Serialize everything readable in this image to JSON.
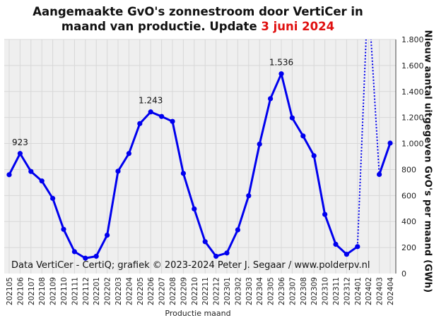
{
  "chart_data": {
    "type": "line",
    "title_line1": "Aangemaakte GvO's zonnestroom door VertiCer in",
    "title_line2_prefix": "maand van productie. Update",
    "title_line2_date": "3 juni 2024",
    "ylabel": "Nieuw aantal uitgegeven GvO's per maand (GWh)",
    "xlabel": "Productie maand",
    "credit": "Data VertiCer - CertiQ; grafiek © 2023-2024 Peter J. Segaar / www.polderpv.nl",
    "ylim": [
      0,
      1800
    ],
    "yticks": [
      0,
      200,
      400,
      600,
      800,
      1000,
      1200,
      1400,
      1600,
      1800
    ],
    "ytick_labels": [
      "0",
      "200",
      "400",
      "600",
      "800",
      "1.000",
      "1.200",
      "1.400",
      "1.600",
      "1.800"
    ],
    "grid": true,
    "categories": [
      "202105",
      "202106",
      "202107",
      "202108",
      "202109",
      "202110",
      "202111",
      "202112",
      "202201",
      "202202",
      "202203",
      "202204",
      "202205",
      "202206",
      "202207",
      "202208",
      "202209",
      "202210",
      "202211",
      "202212",
      "202301",
      "202302",
      "202303",
      "202304",
      "202305",
      "202306",
      "202307",
      "202308",
      "202309",
      "202310",
      "202311",
      "202312",
      "202401",
      "202402",
      "202403",
      "202404"
    ],
    "series": [
      {
        "values": [
          760,
          923,
          785,
          712,
          578,
          340,
          168,
          118,
          133,
          295,
          787,
          923,
          1153,
          1243,
          1208,
          1170,
          770,
          497,
          245,
          133,
          158,
          336,
          598,
          995,
          1345,
          1536,
          1197,
          1058,
          906,
          455,
          225,
          148,
          207,
          null,
          762,
          1003
        ],
        "color": "#0000ee"
      }
    ],
    "gap_bridge": {
      "from": "202401",
      "to": "202403",
      "style": "dotted",
      "note": "202402 value exceeds axis maximum"
    },
    "data_labels": [
      {
        "category": "202106",
        "text": "923"
      },
      {
        "category": "202206",
        "text": "1.243"
      },
      {
        "category": "202306",
        "text": "1.536"
      }
    ],
    "colors": {
      "plot_background": "#efefef",
      "grid": "#d8d8d8",
      "line": "#0000ee",
      "title_highlight": "#e01010"
    }
  }
}
